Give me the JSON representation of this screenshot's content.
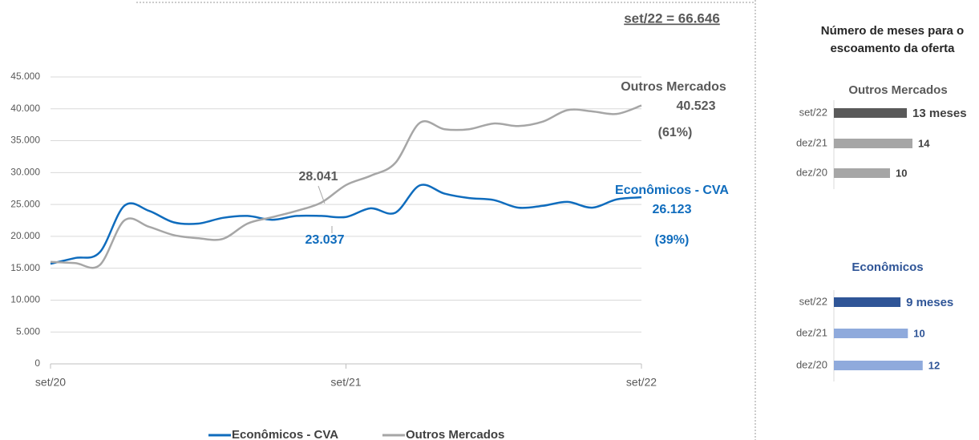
{
  "panel_title": "Número de meses para o escoamento da oferta",
  "chart_data": [
    {
      "type": "line",
      "annotation": "set/22 = 66.646",
      "categories": [
        "set/20",
        null,
        null,
        null,
        null,
        null,
        null,
        null,
        null,
        null,
        null,
        null,
        "set/21",
        null,
        null,
        null,
        null,
        null,
        null,
        null,
        null,
        null,
        null,
        null,
        "set/22"
      ],
      "ylim": [
        0,
        45000
      ],
      "yticks": [
        0,
        {
          "value": 5000,
          "label": "5.000"
        },
        {
          "value": 10000,
          "label": "10.000"
        },
        {
          "value": 15000,
          "label": "15.000"
        },
        {
          "value": 20000,
          "label": "20.000"
        },
        {
          "value": 25000,
          "label": "25.000"
        },
        {
          "value": 30000,
          "label": "30.000"
        },
        {
          "value": 35000,
          "label": "35.000"
        },
        {
          "value": 40000,
          "label": "40.000"
        },
        {
          "value": 45000,
          "label": "45.000"
        }
      ],
      "grid": true,
      "series": [
        {
          "name": "Econômicos - CVA",
          "color": "#0f6cbd",
          "share": "(39%)",
          "values": [
            15700,
            16600,
            17500,
            24800,
            24000,
            22200,
            22000,
            22900,
            23200,
            22600,
            23200,
            23200,
            23037,
            24400,
            23700,
            28000,
            26700,
            26000,
            25700,
            24500,
            24800,
            25400,
            24500,
            25800,
            26123
          ],
          "value_labels": [
            null,
            null,
            null,
            null,
            null,
            null,
            null,
            null,
            null,
            null,
            null,
            null,
            "23.037",
            null,
            null,
            null,
            null,
            null,
            null,
            null,
            null,
            null,
            null,
            null,
            "26.123"
          ]
        },
        {
          "name": "Outros Mercados",
          "color": "#a6a6a6",
          "share": "(61%)",
          "values": [
            16000,
            15800,
            15500,
            22500,
            21500,
            20200,
            19700,
            19600,
            22000,
            23000,
            24000,
            25300,
            28041,
            29500,
            31500,
            37800,
            36800,
            36800,
            37700,
            37300,
            38000,
            39800,
            39600,
            39200,
            40523
          ],
          "value_labels": [
            null,
            null,
            null,
            null,
            null,
            null,
            null,
            null,
            null,
            null,
            null,
            null,
            "28.041",
            null,
            null,
            null,
            null,
            null,
            null,
            null,
            null,
            null,
            null,
            null,
            "40.523"
          ]
        }
      ]
    },
    {
      "type": "bar",
      "orientation": "horizontal",
      "title": "Outros Mercados",
      "categories": [
        "set/22",
        "dez/21",
        "dez/20"
      ],
      "values": [
        13,
        14,
        10
      ],
      "value_labels": [
        "13 meses",
        "14",
        "10"
      ],
      "colors": [
        "#595959",
        "#a6a6a6",
        "#a6a6a6"
      ],
      "xlim": [
        0,
        20
      ]
    },
    {
      "type": "bar",
      "orientation": "horizontal",
      "title": "Econômicos",
      "categories": [
        "set/22",
        "dez/21",
        "dez/20"
      ],
      "values": [
        9,
        10,
        12
      ],
      "value_labels": [
        "9 meses",
        "10",
        "12"
      ],
      "colors": [
        "#2f5597",
        "#8faadc",
        "#8faadc"
      ],
      "xlim": [
        0,
        13
      ]
    }
  ]
}
